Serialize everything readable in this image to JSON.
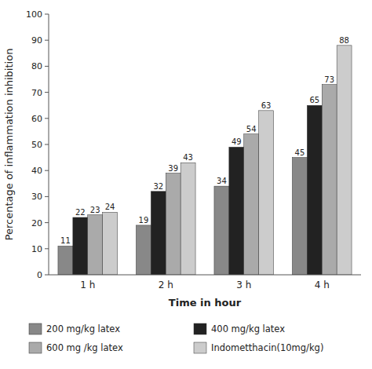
{
  "chart_data": {
    "type": "bar",
    "xlabel": "Time in hour",
    "ylabel": "Percentage of inflammation inhibition",
    "categories": [
      "1 h",
      "2 h",
      "3 h",
      "4 h"
    ],
    "series": [
      {
        "name": "200 mg/kg latex",
        "color": "#888888",
        "values": [
          11,
          19,
          34,
          45
        ]
      },
      {
        "name": "400 mg/kg latex",
        "color": "#222222",
        "values": [
          22,
          32,
          49,
          65
        ]
      },
      {
        "name": "600 mg /kg latex",
        "color": "#aaaaaa",
        "values": [
          23,
          39,
          54,
          73
        ]
      },
      {
        "name": "Indometthacin(10mg/kg)",
        "color": "#cccccc",
        "values": [
          24,
          43,
          63,
          88
        ]
      }
    ],
    "ylim": [
      0,
      100
    ],
    "yticks": [
      0,
      10,
      20,
      30,
      40,
      50,
      60,
      70,
      80,
      90,
      100
    ],
    "grid": false,
    "data_labels": true,
    "legend": "bottom"
  }
}
